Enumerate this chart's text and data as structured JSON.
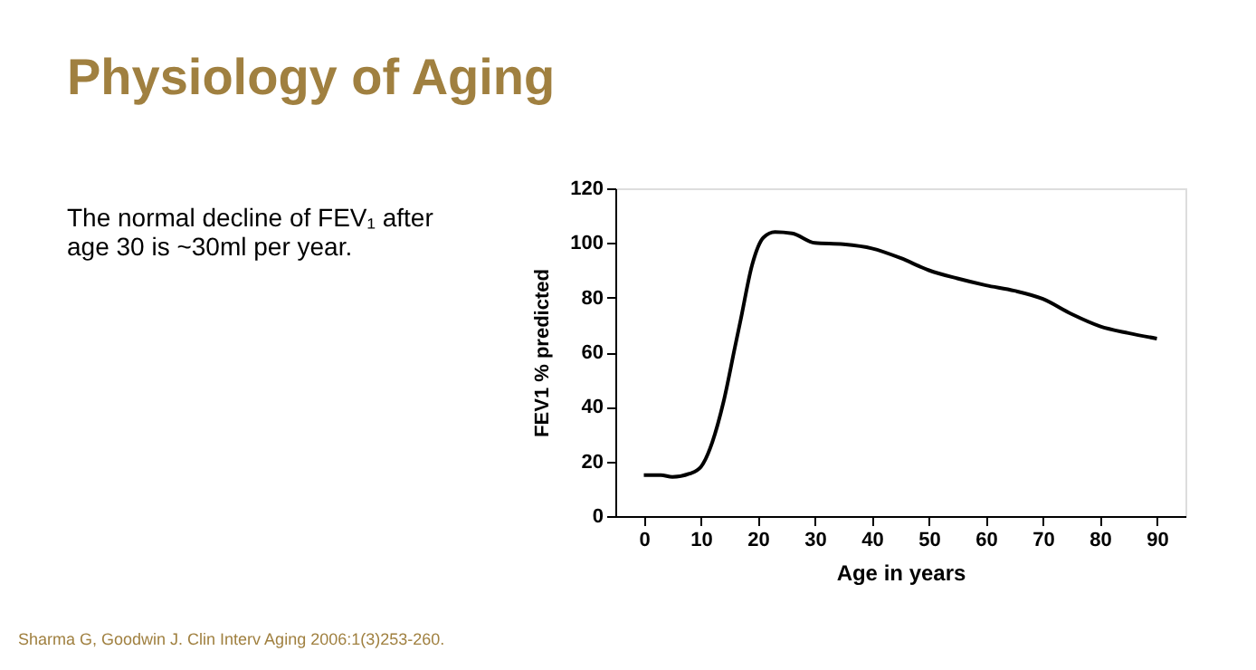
{
  "chart_data": {
    "type": "line",
    "title": "Physiology of Aging",
    "xlabel": "Age in years",
    "ylabel": "FEV1 % predicted",
    "annotations": [
      "The normal decline of FEV₁ after age 30 is ~30ml per year.",
      "Sharma G, Goodwin J. Clin Interv Aging 2006:1(3)253-260."
    ],
    "x": [
      0,
      3,
      5,
      8,
      10,
      12,
      14,
      16,
      17,
      19,
      21,
      23,
      26,
      30,
      35,
      40,
      45,
      50,
      55,
      60,
      65,
      70,
      75,
      80,
      85,
      90
    ],
    "series": [
      {
        "color": "#000000",
        "values": [
          15,
          15,
          14.3,
          15.5,
          18,
          27,
          42,
          62,
          72,
          92,
          102,
          104,
          103.5,
          100,
          99.5,
          98,
          94.5,
          90,
          87,
          84.5,
          82.5,
          79.5,
          74,
          69.5,
          67,
          65
        ]
      }
    ],
    "xlim": [
      -5,
      95
    ],
    "xticks": [
      0,
      10,
      20,
      30,
      40,
      50,
      60,
      70,
      80,
      90
    ],
    "ylim": [
      0,
      120
    ],
    "yticks": [
      0,
      20,
      40,
      60,
      80,
      100,
      120
    ],
    "grid": false,
    "legend": false,
    "marker": "none",
    "line_style": "solid"
  }
}
